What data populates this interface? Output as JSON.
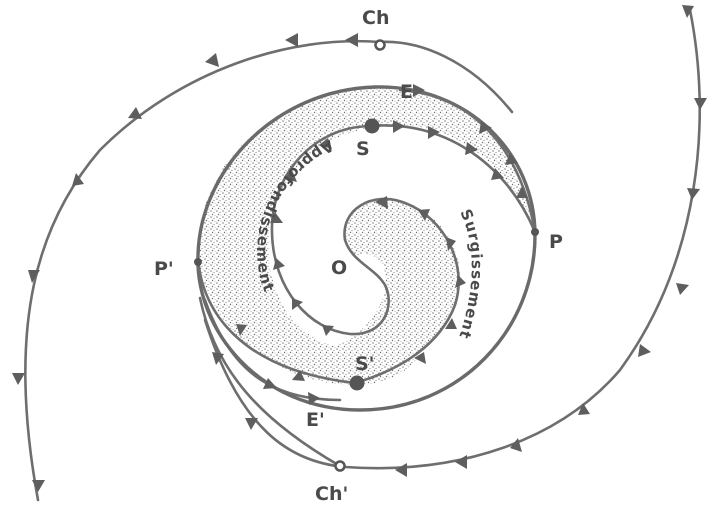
{
  "labels": {
    "ch": "Ch",
    "ch_prime": "Ch'",
    "e": "E",
    "e_prime": "E'",
    "s": "S",
    "s_prime": "S'",
    "p": "P",
    "p_prime": "P'",
    "o": "O",
    "approfondissement": "Approfondissement",
    "surgissement": "Surgissement"
  },
  "colors": {
    "stroke": "#6e6e6e",
    "stipple": "#7a7a7a",
    "text": "#4a4a4a"
  }
}
